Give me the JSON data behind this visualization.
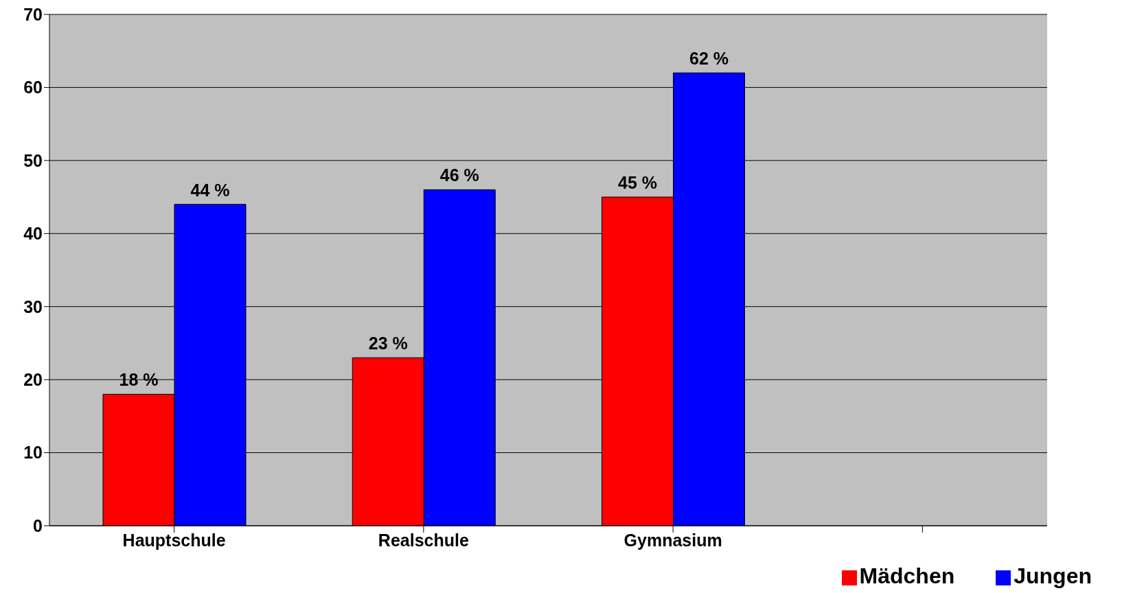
{
  "chart_data": {
    "type": "bar",
    "categories": [
      "Hauptschule",
      "Realschule",
      "Gymnasium",
      null
    ],
    "series": [
      {
        "name": "Mädchen",
        "color": "#ff0000",
        "values": [
          18,
          23,
          45,
          null
        ],
        "value_labels": [
          "18 %",
          "23 %",
          "45 %",
          null
        ]
      },
      {
        "name": "Jungen",
        "color": "#0000ff",
        "values": [
          44,
          46,
          62,
          null
        ],
        "value_labels": [
          "44 %",
          "46 %",
          "62 %",
          null
        ]
      }
    ],
    "ylim": [
      0,
      70
    ],
    "yticks": [
      0,
      10,
      20,
      30,
      40,
      50,
      60,
      70
    ],
    "grid": "y",
    "legend": "bottom right"
  }
}
